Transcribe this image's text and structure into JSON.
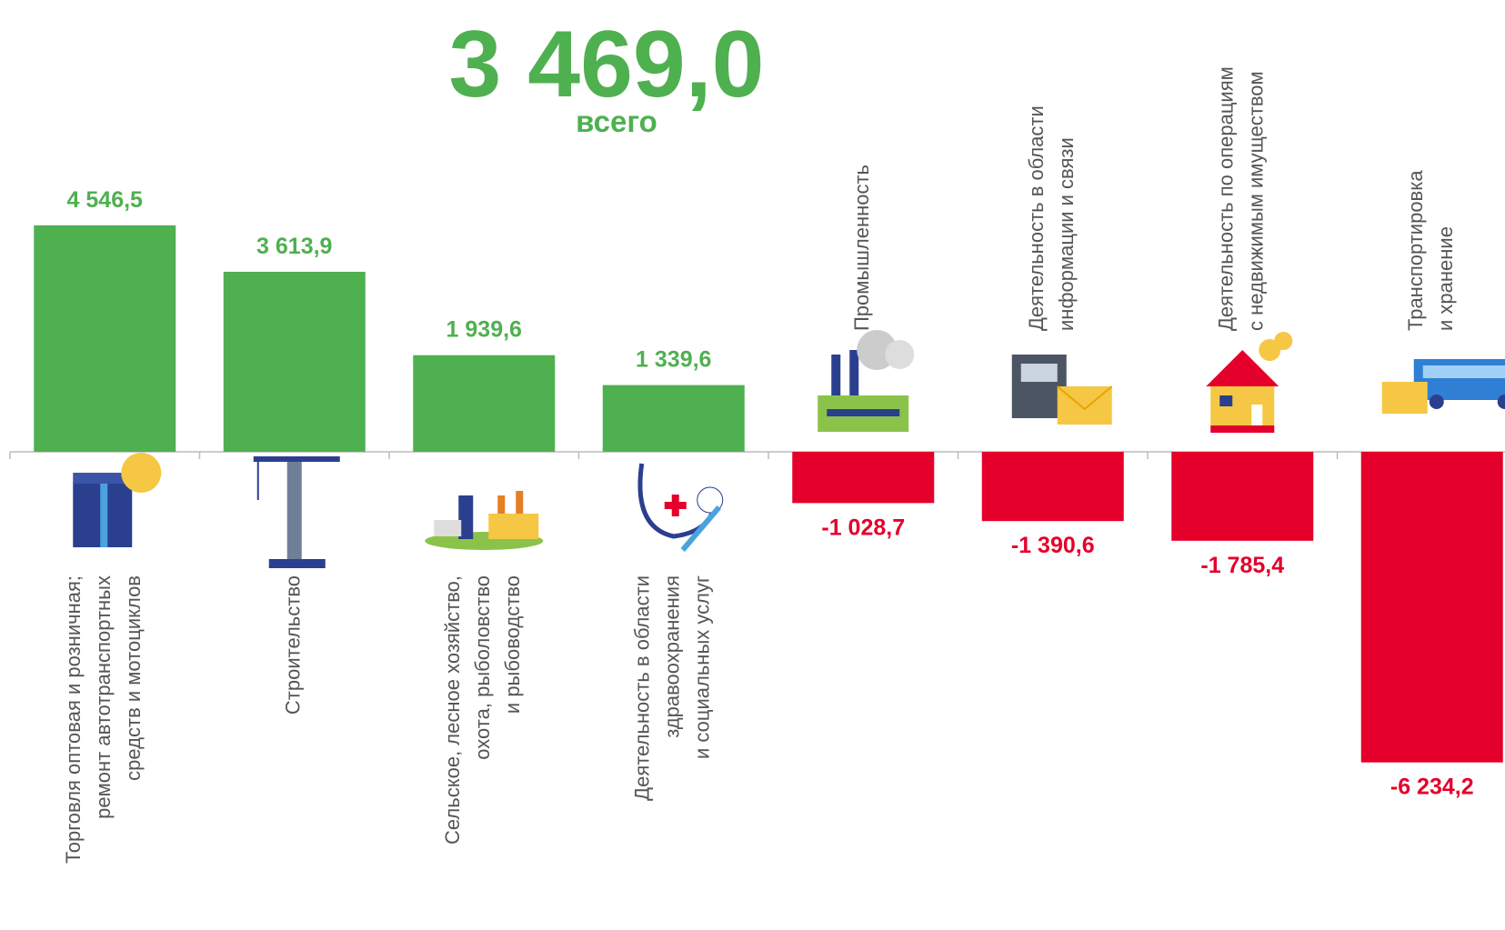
{
  "chart_data": {
    "type": "bar",
    "title": "3 469,0",
    "subtitle": "всего",
    "categories": [
      [
        "Торговля оптовая и розничная;",
        "ремонт автотранспортных",
        "средств и мотоциклов"
      ],
      [
        "Строительство"
      ],
      [
        "Сельское, лесное хозяйство,",
        "охота, рыболовство",
        "и рыбоводство"
      ],
      [
        "Деятельность в области",
        "здравоохранения",
        "и социальных услуг"
      ],
      [
        "Промышленность"
      ],
      [
        "Деятельность в области",
        "информации и связи"
      ],
      [
        "Деятельность по операциям",
        "с недвижимым имуществом"
      ],
      [
        "Транспортировка",
        "и хранение"
      ]
    ],
    "values": [
      4546.5,
      3613.9,
      1939.6,
      1339.6,
      -1028.7,
      -1390.6,
      -1785.4,
      -6234.2
    ],
    "value_labels": [
      "4 546,5",
      "3 613,9",
      "1 939,6",
      "1 339,6",
      "-1 028,7",
      "-1 390,6",
      "-1 785,4",
      "-6 234,2"
    ],
    "color": "#4fb050",
    "negative_color": "#e4002b"
  }
}
